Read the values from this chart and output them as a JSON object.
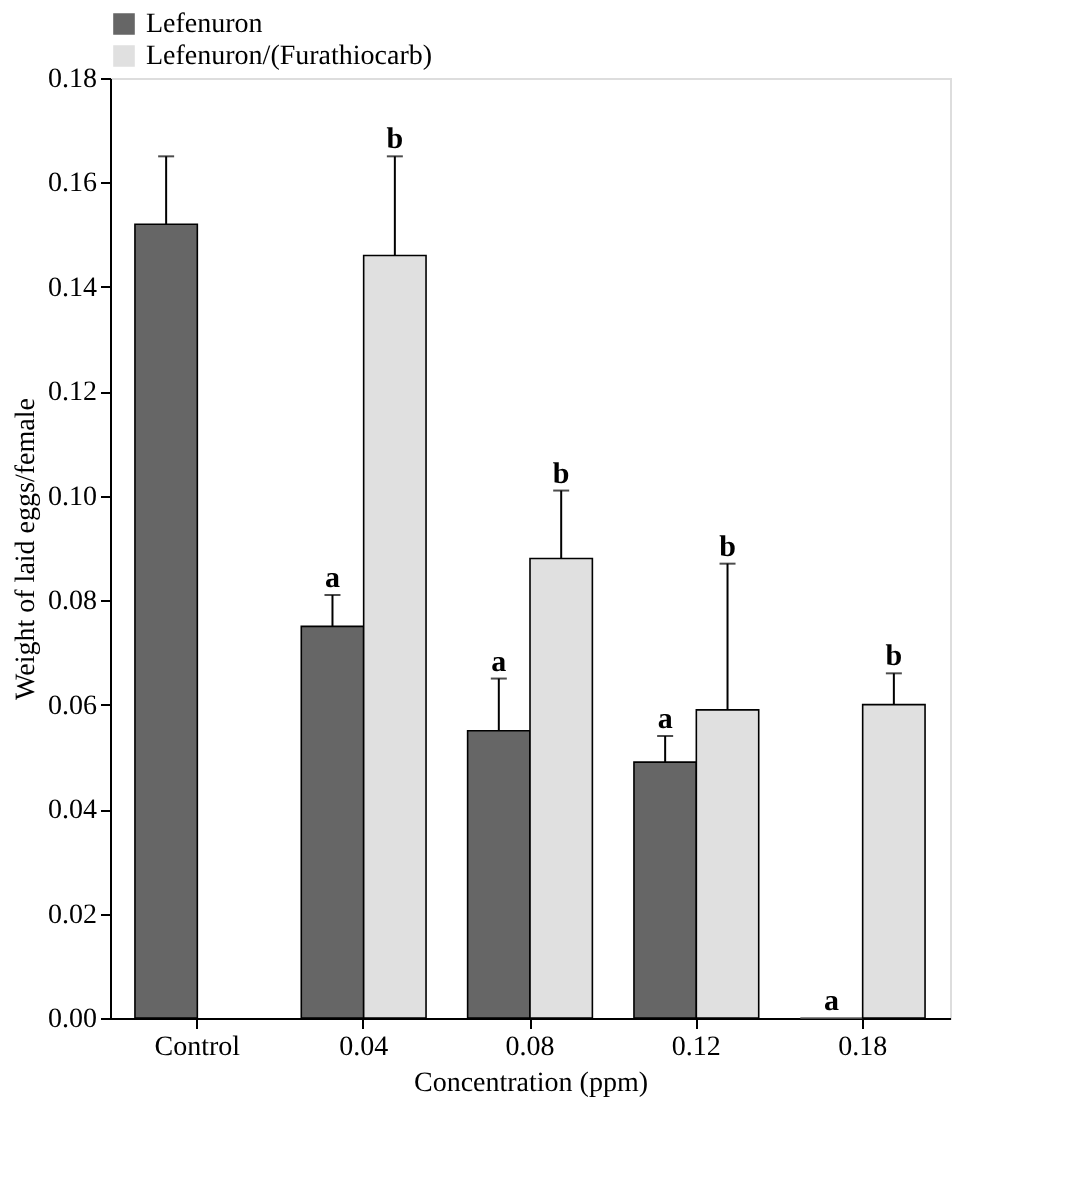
{
  "chart_data": {
    "type": "bar",
    "xlabel": "Concentration (ppm)",
    "ylabel": "Weight of laid eggs/female",
    "categories": [
      "Control",
      "0.04",
      "0.08",
      "0.12",
      "0.18"
    ],
    "series": [
      {
        "name": "Lefenuron",
        "color": "#666666",
        "values": [
          0.152,
          0.075,
          0.055,
          0.049,
          0
        ],
        "errors": [
          [
            0.152,
            0.165
          ],
          [
            0.075,
            0.081
          ],
          [
            0.055,
            0.065
          ],
          [
            0.049,
            0.054
          ],
          null
        ]
      },
      {
        "name": "Lefenuron/(Furathiocarb)",
        "color": "#e0e0e0",
        "values": [
          null,
          0.146,
          0.088,
          0.059,
          0.06
        ],
        "errors": [
          null,
          [
            0.146,
            0.165
          ],
          [
            0.088,
            0.101
          ],
          [
            0.059,
            0.087
          ],
          [
            0.06,
            0.066
          ]
        ]
      }
    ],
    "ylim": [
      0,
      0.18
    ],
    "yticks": [
      {
        "value": 0,
        "label": "0.00"
      },
      {
        "value": 0.02,
        "label": "0.02"
      },
      {
        "value": 0.04,
        "label": "0.04"
      },
      {
        "value": 0.06,
        "label": "0.06"
      },
      {
        "value": 0.08,
        "label": "0.08"
      },
      {
        "value": 0.1,
        "label": "0.10"
      },
      {
        "value": 0.12,
        "label": "0.12"
      },
      {
        "value": 0.14,
        "label": "0.14"
      },
      {
        "value": 0.16,
        "label": "0.16"
      },
      {
        "value": 0.18,
        "label": "0.18"
      }
    ],
    "annotations": [
      {
        "text": "a",
        "x": "0.04",
        "y": 0.081
      },
      "b",
      {
        "text": "a",
        "x": "0.08",
        "y": 0.065
      },
      {
        "text": "b",
        "x": "0.08",
        "y": 0.088
      },
      {
        "text": "a",
        "x": "0.12",
        "y": 0.054
      },
      "b",
      {
        "text": "a",
        "x": "0.18",
        "y": 0
      },
      {
        "text": "b",
        "x": "0.18",
        "y": 0.06
      }
    ],
    "grid": false,
    "legend": "top"
  }
}
